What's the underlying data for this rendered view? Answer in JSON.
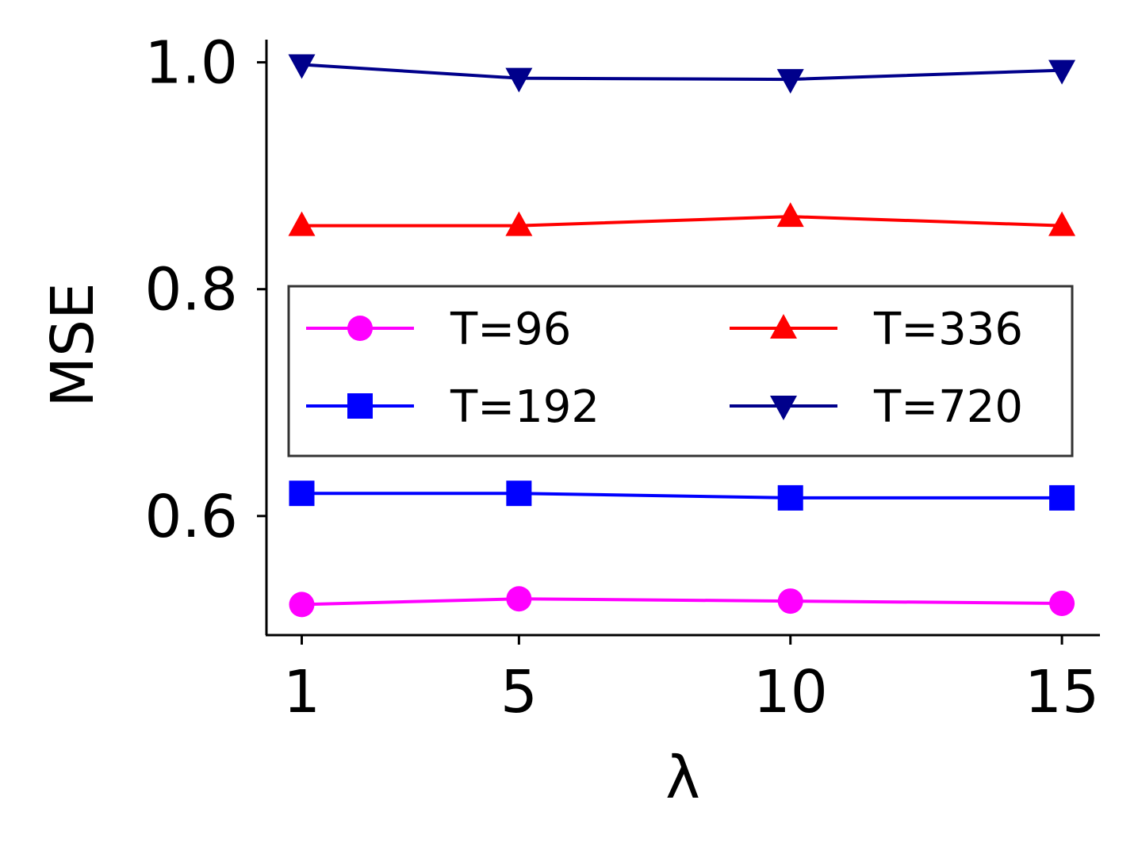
{
  "chart_data": {
    "type": "line",
    "xlabel": "λ",
    "ylabel": "MSE",
    "x": [
      1,
      5,
      10,
      15
    ],
    "xticks": [
      "1",
      "5",
      "10",
      "15"
    ],
    "yticks": [
      "0.6",
      "0.8",
      "1.0"
    ],
    "ytick_values": [
      0.6,
      0.8,
      1.0
    ],
    "xlim": [
      0.35,
      15.7
    ],
    "ylim": [
      0.495,
      1.02
    ],
    "grid": false,
    "legend_position": "center",
    "series": [
      {
        "name": "T=96",
        "color": "#ff00ff",
        "marker": "circle",
        "values": [
          0.522,
          0.527,
          0.525,
          0.523
        ]
      },
      {
        "name": "T=192",
        "color": "#0000ff",
        "marker": "square",
        "values": [
          0.62,
          0.62,
          0.616,
          0.616
        ]
      },
      {
        "name": "T=336",
        "color": "#ff0000",
        "marker": "triangle-up",
        "values": [
          0.856,
          0.856,
          0.864,
          0.856
        ]
      },
      {
        "name": "T=720",
        "color": "#00008b",
        "marker": "triangle-down",
        "values": [
          0.998,
          0.986,
          0.985,
          0.993
        ]
      }
    ]
  }
}
